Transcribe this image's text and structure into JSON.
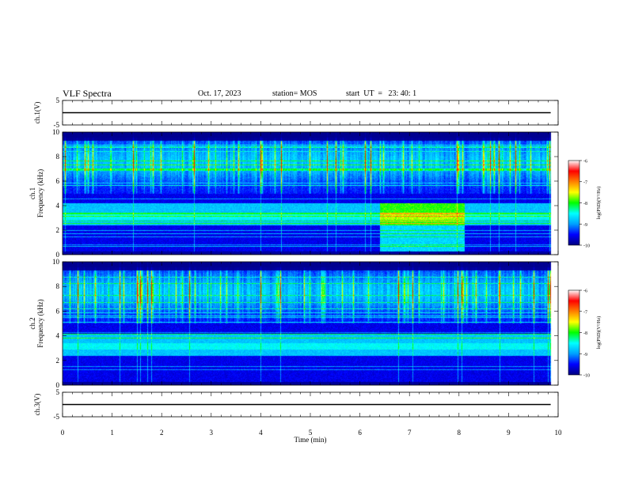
{
  "header": {
    "title": "VLF Spectra",
    "date": "Oct. 17, 2023",
    "station": "station= MOS",
    "start_time": "start  UT  =   23: 40: 1"
  },
  "chart_data": [
    {
      "type": "line",
      "panel": "ch.1 voltage",
      "ylabel": "ch.1(V)",
      "ylim": [
        -5,
        5
      ],
      "ytick_labels": [
        "5",
        "-5"
      ],
      "x": [
        0,
        9.85
      ],
      "values": [
        0,
        0
      ]
    },
    {
      "type": "heatmap",
      "panel": "ch.1 spectrogram",
      "ylabel": "ch.1\nFrequency (kHz)",
      "ylim": [
        0,
        10
      ],
      "ytick_labels": [
        "0",
        "2",
        "4",
        "6",
        "8",
        "10"
      ],
      "colorbar": {
        "label": "log(PSD)(V²/Hz)",
        "range": [
          -10,
          -6
        ],
        "tick_labels": [
          "-6",
          "-7",
          "-8",
          "-9",
          "-10"
        ],
        "colors": [
          "#000080",
          "#0000ff",
          "#00a0ff",
          "#00ffff",
          "#00ff00",
          "#ffff00",
          "#ff8000",
          "#ff0000",
          "#ffffff"
        ]
      },
      "features": {
        "enhanced_band_minutes": [
          6.4,
          8.1
        ],
        "enhanced_band_khz": [
          0.3,
          4.2
        ]
      }
    },
    {
      "type": "heatmap",
      "panel": "ch.2 spectrogram",
      "ylabel": "ch.2\nFrequency (kHz)",
      "ylim": [
        0,
        10
      ],
      "ytick_labels": [
        "0",
        "2",
        "4",
        "6",
        "8",
        "10"
      ],
      "colorbar": {
        "label": "log(PSD)(V²/Hz)",
        "range": [
          -10,
          -6
        ],
        "tick_labels": [
          "-6",
          "-7",
          "-8",
          "-9",
          "-10"
        ],
        "colors": [
          "#000080",
          "#0000ff",
          "#00a0ff",
          "#00ffff",
          "#00ff00",
          "#ffff00",
          "#ff8000",
          "#ff0000",
          "#ffffff"
        ]
      }
    },
    {
      "type": "line",
      "panel": "ch.3 voltage",
      "ylabel": "ch.3(V)",
      "ylim": [
        -5,
        5
      ],
      "ytick_labels": [
        "5",
        "-5"
      ],
      "x": [
        0,
        9.85
      ],
      "values": [
        0,
        0
      ]
    }
  ],
  "x_axis": {
    "label": "Time (min)",
    "xlim": [
      0,
      10
    ],
    "tick_labels": [
      "0",
      "1",
      "2",
      "3",
      "4",
      "5",
      "6",
      "7",
      "8",
      "9",
      "10"
    ]
  }
}
